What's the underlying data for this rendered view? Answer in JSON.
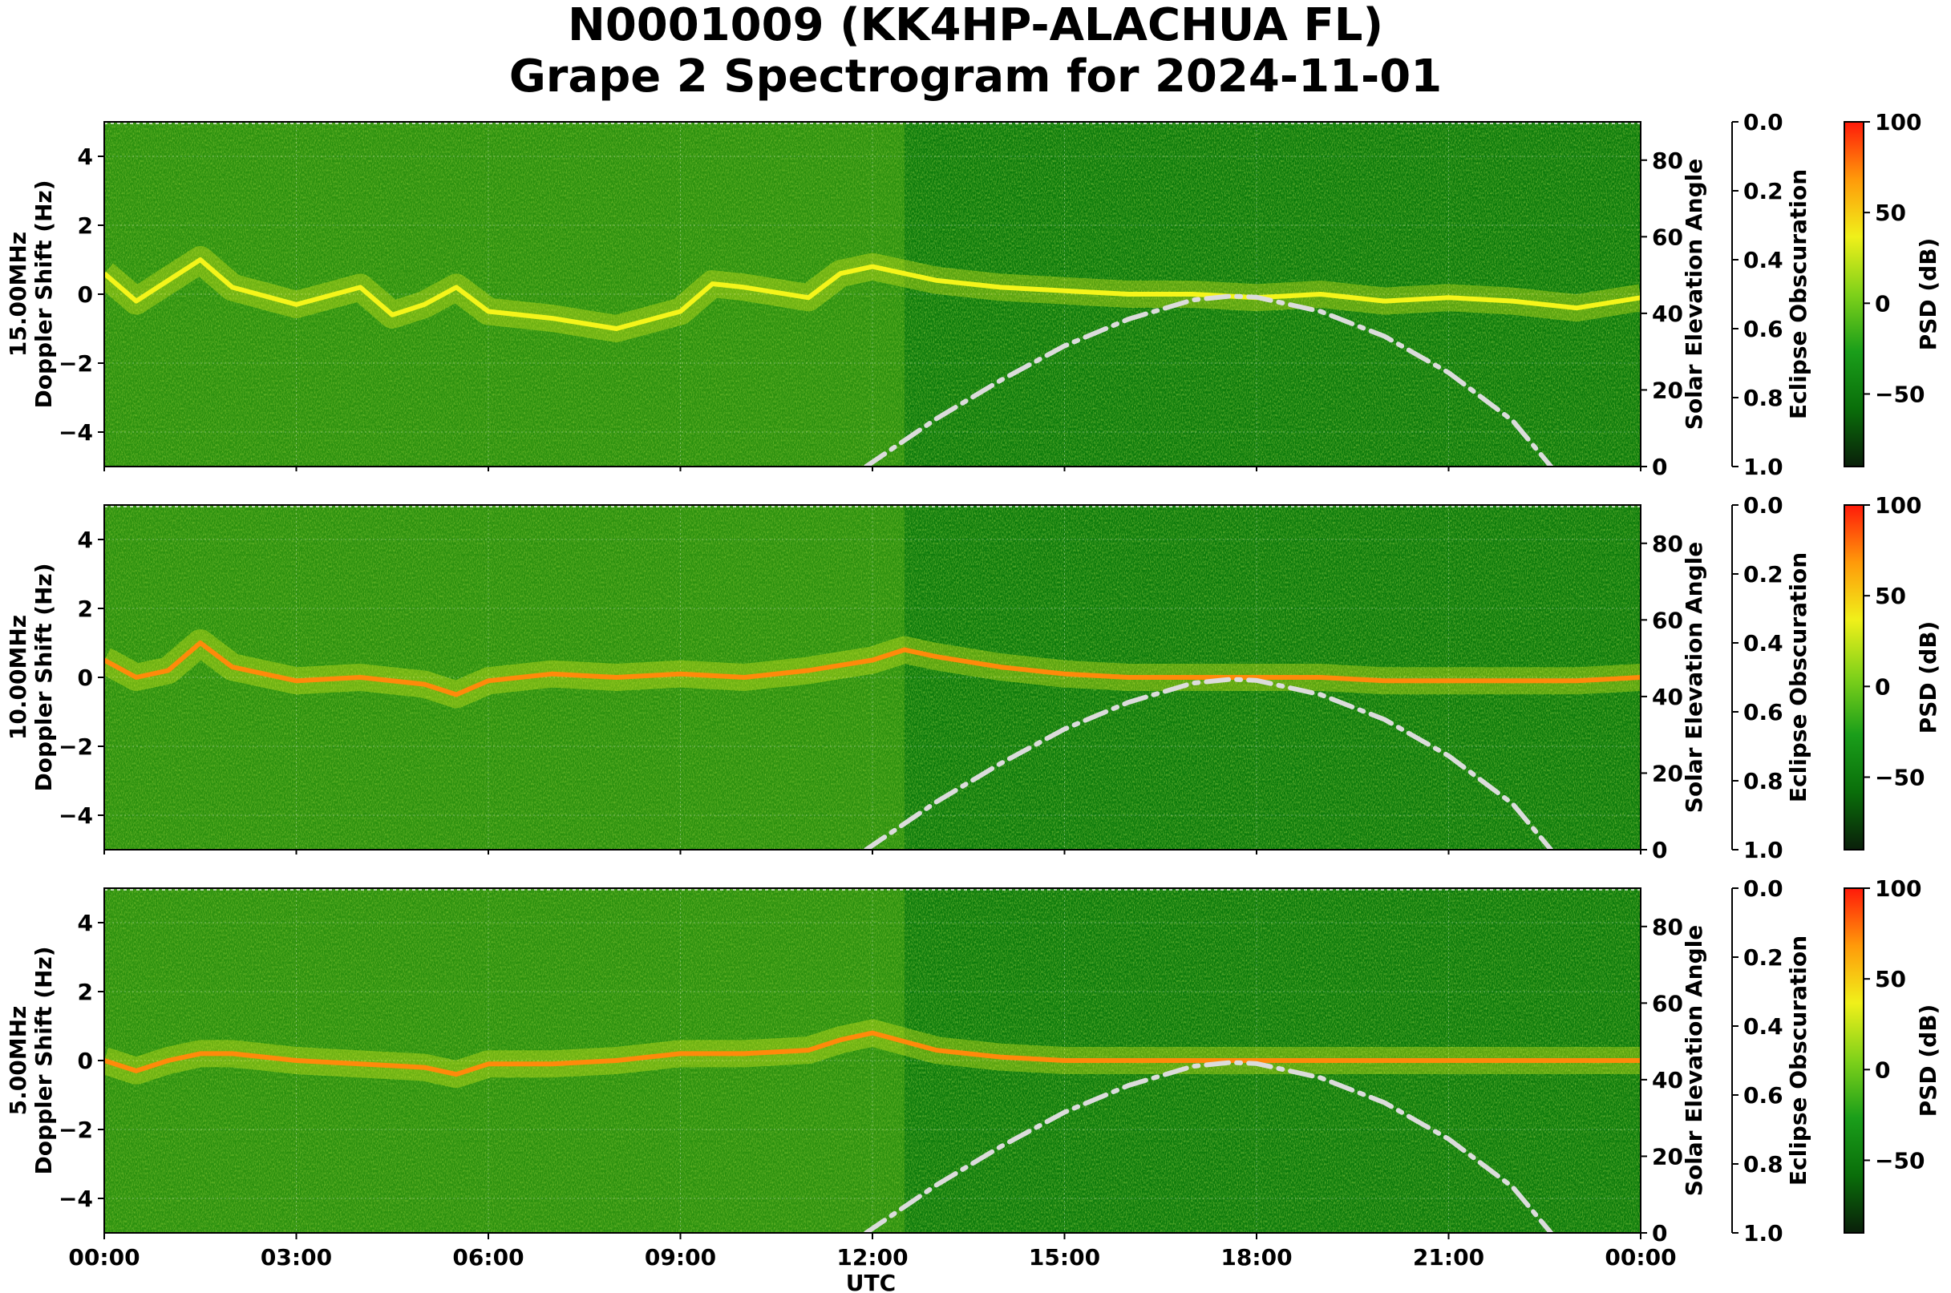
{
  "title_line1": "N0001009 (KK4HP-ALACHUA FL)",
  "title_line2": "Grape 2 Spectrogram for 2024-11-01",
  "colors": {
    "spectrogram_background": "#0b7a0b",
    "psd_colormap": [
      "#0a1f0a",
      "#0a6e0a",
      "#1a9e1a",
      "#7fd11a",
      "#f0f01a",
      "#ff9a0a",
      "#ff1a0a"
    ],
    "solar_curve": "#dcdcdc"
  },
  "chart_data": [
    {
      "type": "heatmap",
      "panel": "15.00MHz",
      "ylabel": "15.00MHz\nDoppler Shift (Hz)",
      "right_ylabel": "Solar Elevation Angle",
      "eclipse_label": "Eclipse Obscuration",
      "colorbar_label": "PSD (dB)",
      "ylim": [
        -5,
        5
      ],
      "yticks": [
        -4,
        -2,
        0,
        2,
        4
      ],
      "right_ylim": [
        0,
        90
      ],
      "right_yticks": [
        0,
        20,
        40,
        60,
        80
      ],
      "eclipse_ticks": [
        "0.0",
        "0.2",
        "0.4",
        "0.6",
        "0.8",
        "1.0"
      ],
      "colorbar_range": [
        -90,
        100
      ],
      "colorbar_ticks": [
        100,
        50,
        0,
        -50
      ],
      "doppler_trace": {
        "x_hours": [
          0,
          0.5,
          1,
          1.5,
          2,
          3,
          4,
          4.5,
          5,
          5.5,
          6,
          7,
          8,
          9,
          9.5,
          10,
          11,
          11.5,
          12,
          13,
          14,
          15,
          16,
          17,
          18,
          19,
          20,
          21,
          22,
          23,
          24
        ],
        "y_hz": [
          0.6,
          -0.2,
          0.4,
          1.0,
          0.2,
          -0.3,
          0.2,
          -0.6,
          -0.3,
          0.2,
          -0.5,
          -0.7,
          -1.0,
          -0.5,
          0.3,
          0.2,
          -0.1,
          0.6,
          0.8,
          0.4,
          0.2,
          0.1,
          0.0,
          0.0,
          -0.1,
          0.0,
          -0.2,
          -0.1,
          -0.2,
          -0.4,
          -0.1
        ]
      },
      "solar_elevation": {
        "x_hours": [
          11.9,
          13,
          14,
          15,
          16,
          17,
          17.6,
          18,
          19,
          20,
          21,
          22,
          22.6
        ],
        "y_deg": [
          0,
          12.5,
          22.5,
          31.5,
          38.5,
          43.5,
          44.5,
          44.2,
          40.5,
          34,
          24.5,
          12,
          0
        ]
      }
    },
    {
      "type": "heatmap",
      "panel": "10.00MHz",
      "ylabel": "10.00MHz\nDoppler Shift (Hz)",
      "right_ylabel": "Solar Elevation Angle",
      "eclipse_label": "Eclipse Obscuration",
      "colorbar_label": "PSD (dB)",
      "ylim": [
        -5,
        5
      ],
      "yticks": [
        -4,
        -2,
        0,
        2,
        4
      ],
      "right_ylim": [
        0,
        90
      ],
      "right_yticks": [
        0,
        20,
        40,
        60,
        80
      ],
      "eclipse_ticks": [
        "0.0",
        "0.2",
        "0.4",
        "0.6",
        "0.8",
        "1.0"
      ],
      "colorbar_range": [
        -90,
        100
      ],
      "colorbar_ticks": [
        100,
        50,
        0,
        -50
      ],
      "doppler_trace": {
        "x_hours": [
          0,
          0.5,
          1,
          1.5,
          2,
          3,
          4,
          5,
          5.5,
          6,
          7,
          8,
          9,
          10,
          11,
          12,
          12.5,
          13,
          14,
          15,
          16,
          17,
          18,
          19,
          20,
          21,
          22,
          23,
          24
        ],
        "y_hz": [
          0.5,
          0.0,
          0.2,
          1.0,
          0.3,
          -0.1,
          0.0,
          -0.2,
          -0.5,
          -0.1,
          0.1,
          0.0,
          0.1,
          0.0,
          0.2,
          0.5,
          0.8,
          0.6,
          0.3,
          0.1,
          0.0,
          0.0,
          0.0,
          0.0,
          -0.1,
          -0.1,
          -0.1,
          -0.1,
          0.0
        ]
      },
      "solar_elevation": {
        "x_hours": [
          11.9,
          13,
          14,
          15,
          16,
          17,
          17.6,
          18,
          19,
          20,
          21,
          22,
          22.6
        ],
        "y_deg": [
          0,
          12.5,
          22.5,
          31.5,
          38.5,
          43.5,
          44.5,
          44.2,
          40.5,
          34,
          24.5,
          12,
          0
        ]
      }
    },
    {
      "type": "heatmap",
      "panel": "5.00MHz",
      "ylabel": "5.00MHz\nDoppler Shift (Hz)",
      "right_ylabel": "Solar Elevation Angle",
      "eclipse_label": "Eclipse Obscuration",
      "colorbar_label": "PSD (dB)",
      "xlabel": "UTC",
      "xticks": [
        "00:00",
        "03:00",
        "06:00",
        "09:00",
        "12:00",
        "15:00",
        "18:00",
        "21:00",
        "00:00"
      ],
      "ylim": [
        -5,
        5
      ],
      "yticks": [
        -4,
        -2,
        0,
        2,
        4
      ],
      "right_ylim": [
        0,
        90
      ],
      "right_yticks": [
        0,
        20,
        40,
        60,
        80
      ],
      "eclipse_ticks": [
        "0.0",
        "0.2",
        "0.4",
        "0.6",
        "0.8",
        "1.0"
      ],
      "colorbar_range": [
        -90,
        100
      ],
      "colorbar_ticks": [
        100,
        50,
        0,
        -50
      ],
      "doppler_trace": {
        "x_hours": [
          0,
          0.5,
          1,
          1.5,
          2,
          3,
          4,
          5,
          5.5,
          6,
          7,
          8,
          9,
          10,
          11,
          11.5,
          12,
          13,
          14,
          15,
          16,
          17,
          18,
          19,
          20,
          21,
          22,
          23,
          24
        ],
        "y_hz": [
          0.0,
          -0.3,
          0.0,
          0.2,
          0.2,
          0.0,
          -0.1,
          -0.2,
          -0.4,
          -0.1,
          -0.1,
          0.0,
          0.2,
          0.2,
          0.3,
          0.6,
          0.8,
          0.3,
          0.1,
          0.0,
          0.0,
          0.0,
          0.0,
          0.0,
          0.0,
          0.0,
          0.0,
          0.0,
          0.0
        ]
      },
      "solar_elevation": {
        "x_hours": [
          11.9,
          13,
          14,
          15,
          16,
          17,
          17.6,
          18,
          19,
          20,
          21,
          22,
          22.6
        ],
        "y_deg": [
          0,
          12.5,
          22.5,
          31.5,
          38.5,
          43.5,
          44.5,
          44.2,
          40.5,
          34,
          24.5,
          12,
          0
        ]
      }
    }
  ]
}
